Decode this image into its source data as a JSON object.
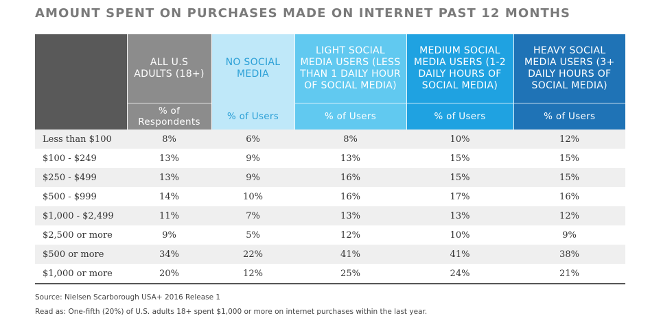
{
  "chart_data": {
    "type": "table",
    "title": "AMOUNT SPENT ON PURCHASES MADE ON INTERNET PAST 12 MONTHS",
    "columns": [
      {
        "header": "ALL U.S ADULTS (18+)",
        "subheader": "% of Respondents",
        "color": "#8c8c8c"
      },
      {
        "header": "NO SOCIAL MEDIA",
        "subheader": "% of Users",
        "color": "#bfe8f9"
      },
      {
        "header": "LIGHT SOCIAL MEDIA USERS (LESS THAN 1 DAILY HOUR OF SOCIAL MEDIA)",
        "subheader": "% of Users",
        "color": "#61c9f0"
      },
      {
        "header": "MEDIUM SOCIAL MEDIA USERS (1-2 DAILY HOURS OF SOCIAL MEDIA)",
        "subheader": "% of Users",
        "color": "#1fa2e1"
      },
      {
        "header": "HEAVY SOCIAL MEDIA USERS (3+ DAILY HOURS OF SOCIAL MEDIA)",
        "subheader": "% of Users",
        "color": "#1f73b6"
      }
    ],
    "rows": [
      {
        "label": "Less than $100",
        "values": [
          "8%",
          "6%",
          "8%",
          "10%",
          "12%"
        ]
      },
      {
        "label": "$100 - $249",
        "values": [
          "13%",
          "9%",
          "13%",
          "15%",
          "15%"
        ]
      },
      {
        "label": "$250 - $499",
        "values": [
          "13%",
          "9%",
          "16%",
          "15%",
          "15%"
        ]
      },
      {
        "label": "$500 - $999",
        "values": [
          "14%",
          "10%",
          "16%",
          "17%",
          "16%"
        ]
      },
      {
        "label": "$1,000 - $2,499",
        "values": [
          "11%",
          "7%",
          "13%",
          "13%",
          "12%"
        ]
      },
      {
        "label": "$2,500 or more",
        "values": [
          "9%",
          "5%",
          "12%",
          "10%",
          "9%"
        ]
      },
      {
        "label": "$500 or more",
        "values": [
          "34%",
          "22%",
          "41%",
          "41%",
          "38%"
        ]
      },
      {
        "label": "$1,000 or more",
        "values": [
          "20%",
          "12%",
          "25%",
          "24%",
          "21%"
        ]
      }
    ]
  },
  "notes": {
    "source": "Source: Nielsen Scarborough USA+ 2016 Release 1",
    "read_as": "Read as: One-fifth (20%) of U.S. adults 18+ spent $1,000 or more on internet purchases within the last year."
  }
}
